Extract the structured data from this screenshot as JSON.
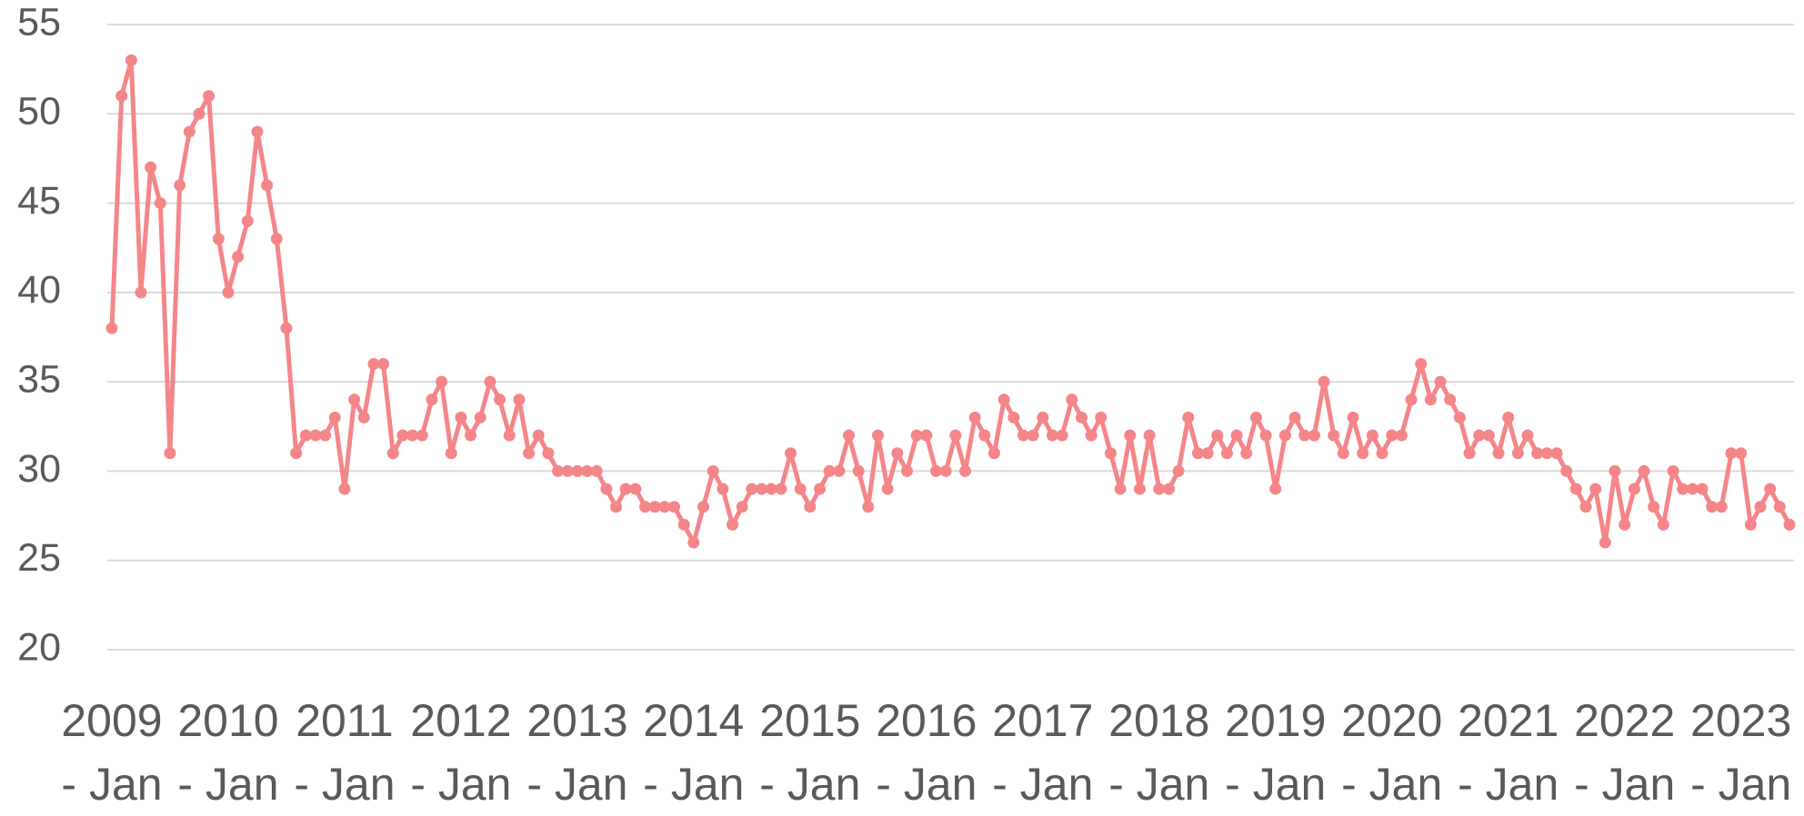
{
  "chart_data": {
    "type": "line",
    "categories": [
      "2009 - Jan",
      null,
      null,
      null,
      null,
      null,
      null,
      null,
      null,
      null,
      null,
      null,
      "2010 - Jan",
      null,
      null,
      null,
      null,
      null,
      null,
      null,
      null,
      null,
      null,
      null,
      "2011 - Jan",
      null,
      null,
      null,
      null,
      null,
      null,
      null,
      null,
      null,
      null,
      null,
      "2012 - Jan",
      null,
      null,
      null,
      null,
      null,
      null,
      null,
      null,
      null,
      null,
      null,
      "2013 - Jan",
      null,
      null,
      null,
      null,
      null,
      null,
      null,
      null,
      null,
      null,
      null,
      "2014 - Jan",
      null,
      null,
      null,
      null,
      null,
      null,
      null,
      null,
      null,
      null,
      null,
      "2015 - Jan",
      null,
      null,
      null,
      null,
      null,
      null,
      null,
      null,
      null,
      null,
      null,
      "2016 - Jan",
      null,
      null,
      null,
      null,
      null,
      null,
      null,
      null,
      null,
      null,
      null,
      "2017 - Jan",
      null,
      null,
      null,
      null,
      null,
      null,
      null,
      null,
      null,
      null,
      null,
      "2018 - Jan",
      null,
      null,
      null,
      null,
      null,
      null,
      null,
      null,
      null,
      null,
      null,
      "2019 - Jan",
      null,
      null,
      null,
      null,
      null,
      null,
      null,
      null,
      null,
      null,
      null,
      "2020 - Jan",
      null,
      null,
      null,
      null,
      null,
      null,
      null,
      null,
      null,
      null,
      null,
      "2021 - Jan",
      null,
      null,
      null,
      null,
      null,
      null,
      null,
      null,
      null,
      null,
      null,
      "2022 - Jan",
      null,
      null,
      null,
      null,
      null,
      null,
      null,
      null,
      null,
      null,
      null,
      "2023 - Jan",
      null,
      null,
      null,
      null,
      null
    ],
    "values": [
      38,
      51,
      53,
      40,
      47,
      45,
      31,
      46,
      49,
      50,
      51,
      43,
      40,
      42,
      44,
      49,
      46,
      43,
      38,
      31,
      32,
      32,
      32,
      33,
      29,
      34,
      33,
      36,
      36,
      31,
      32,
      32,
      32,
      34,
      35,
      31,
      33,
      32,
      33,
      35,
      34,
      32,
      34,
      31,
      32,
      31,
      30,
      30,
      30,
      30,
      30,
      29,
      28,
      29,
      29,
      28,
      28,
      28,
      28,
      27,
      26,
      28,
      30,
      29,
      27,
      28,
      29,
      29,
      29,
      29,
      31,
      29,
      28,
      29,
      30,
      30,
      32,
      30,
      28,
      32,
      29,
      31,
      30,
      32,
      32,
      30,
      30,
      32,
      30,
      33,
      32,
      31,
      34,
      33,
      32,
      32,
      33,
      32,
      32,
      34,
      33,
      32,
      33,
      31,
      29,
      32,
      29,
      32,
      29,
      29,
      30,
      33,
      31,
      31,
      32,
      31,
      32,
      31,
      33,
      32,
      29,
      32,
      33,
      32,
      32,
      35,
      32,
      31,
      33,
      31,
      32,
      31,
      32,
      32,
      34,
      36,
      34,
      35,
      34,
      33,
      31,
      32,
      32,
      31,
      33,
      31,
      32,
      31,
      31,
      31,
      30,
      29,
      28,
      29,
      26,
      30,
      27,
      29,
      30,
      28,
      27,
      30,
      29,
      29,
      29,
      28,
      28,
      31,
      31,
      27,
      28,
      29,
      28,
      27
    ],
    "color": "#f4868a",
    "ylim": [
      20,
      55
    ],
    "yticks": [
      20,
      25,
      30,
      35,
      40,
      45,
      50,
      55
    ],
    "grid": true
  }
}
